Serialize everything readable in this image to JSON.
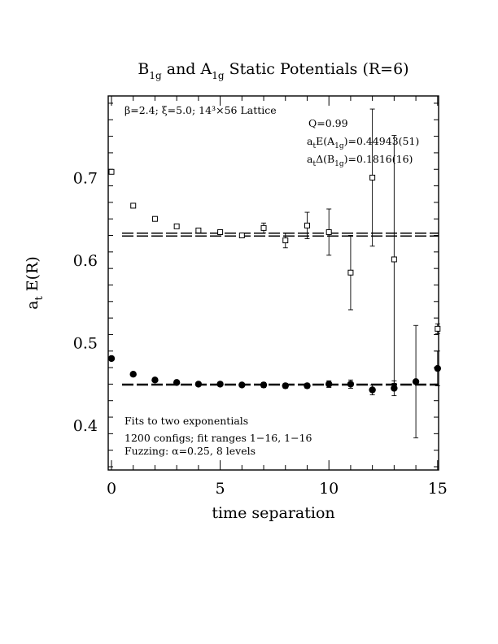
{
  "chart_data": {
    "type": "scatter",
    "title": {
      "parts": [
        {
          "text": "B",
          "sub": "1g"
        },
        {
          "text": " and A",
          "sub": "1g"
        },
        {
          "text": " Static Potentials (R=6)",
          "sub": ""
        }
      ]
    },
    "xlabel": "time separation",
    "ylabel": {
      "base": "a",
      "sub": "t",
      "rest": " E(R)"
    },
    "xlim": [
      0,
      15
    ],
    "ylim": [
      0.345,
      0.797
    ],
    "x_ticks": [
      0,
      5,
      10,
      15
    ],
    "x_tick_labels": [
      "0",
      "5",
      "10",
      "15"
    ],
    "y_ticks": [
      0.4,
      0.5,
      0.6,
      0.7
    ],
    "y_tick_labels": [
      "0.4",
      "0.5",
      "0.6",
      "0.7"
    ],
    "annotations": {
      "lattice": "β=2.4; ξ=5.0; 14³×56 Lattice",
      "q": "Q=0.99",
      "a1g": {
        "pre": "a",
        "sub1": "t",
        "mid": "E(A",
        "sub2": "1g",
        "post": ")=0.44943(51)"
      },
      "b1g": {
        "pre": "a",
        "sub1": "t",
        "mid": "Δ(B",
        "sub2": "1g",
        "post": ")=0.1816(16)"
      },
      "fits": "Fits to two exponentials",
      "configs": "1200 configs; fit ranges 1−16, 1−16",
      "fuzzing": "Fuzzing: α=0.25, 8 levels"
    },
    "series": [
      {
        "marker": "open-square",
        "points": [
          {
            "x": 0,
            "y": 0.707,
            "err": 0
          },
          {
            "x": 1,
            "y": 0.666,
            "err": 0
          },
          {
            "x": 2,
            "y": 0.65,
            "err": 0
          },
          {
            "x": 3,
            "y": 0.641,
            "err": 0
          },
          {
            "x": 4,
            "y": 0.636,
            "err": 0.002
          },
          {
            "x": 5,
            "y": 0.634,
            "err": 0.003
          },
          {
            "x": 6,
            "y": 0.63,
            "err": 0.003
          },
          {
            "x": 7,
            "y": 0.639,
            "err": 0.006
          },
          {
            "x": 8,
            "y": 0.624,
            "err": 0.009
          },
          {
            "x": 9,
            "y": 0.642,
            "err": 0.016
          },
          {
            "x": 10,
            "y": 0.634,
            "err": 0.028
          },
          {
            "x": 11,
            "y": 0.585,
            "err": 0.045
          },
          {
            "x": 12,
            "y": 0.7,
            "err": 0.083
          },
          {
            "x": 13,
            "y": 0.601,
            "err": 0.15
          },
          {
            "x": 15,
            "y": 0.517,
            "err": 0.006
          }
        ]
      },
      {
        "marker": "filled-circle",
        "points": [
          {
            "x": 0,
            "y": 0.481,
            "err": 0
          },
          {
            "x": 1,
            "y": 0.462,
            "err": 0
          },
          {
            "x": 2,
            "y": 0.455,
            "err": 0
          },
          {
            "x": 3,
            "y": 0.452,
            "err": 0
          },
          {
            "x": 4,
            "y": 0.45,
            "err": 0
          },
          {
            "x": 5,
            "y": 0.45,
            "err": 0.002
          },
          {
            "x": 6,
            "y": 0.449,
            "err": 0.002
          },
          {
            "x": 7,
            "y": 0.449,
            "err": 0.003
          },
          {
            "x": 8,
            "y": 0.448,
            "err": 0.003
          },
          {
            "x": 9,
            "y": 0.448,
            "err": 0.003
          },
          {
            "x": 10,
            "y": 0.45,
            "err": 0.004
          },
          {
            "x": 11,
            "y": 0.45,
            "err": 0.005
          },
          {
            "x": 12,
            "y": 0.443,
            "err": 0.006
          },
          {
            "x": 13,
            "y": 0.445,
            "err": 0.009
          },
          {
            "x": 14,
            "y": 0.453,
            "err": 0.068
          },
          {
            "x": 15,
            "y": 0.469,
            "err": 0.021
          }
        ]
      }
    ],
    "fit_lines": [
      {
        "y": 0.631,
        "band": 0.0017
      },
      {
        "y": 0.44943,
        "band": 0.00051
      }
    ],
    "grid": false
  }
}
